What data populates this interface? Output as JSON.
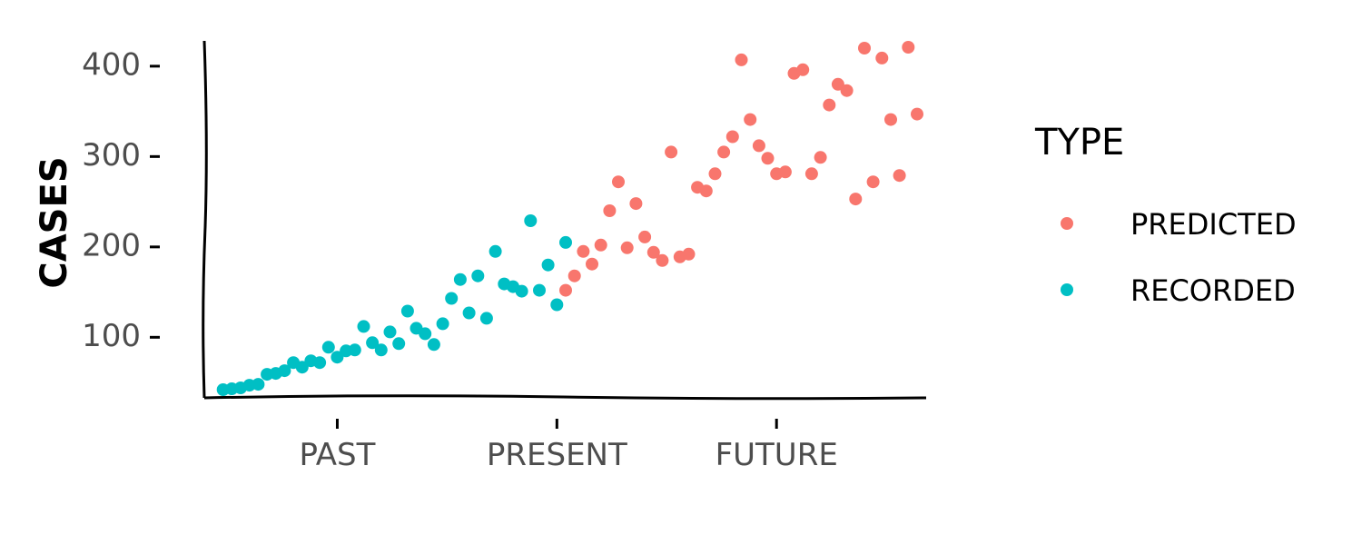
{
  "chart_data": {
    "type": "scatter",
    "ylabel": "CASES",
    "xlabel": "",
    "x_ticks": [
      {
        "label": "PAST",
        "x": 15
      },
      {
        "label": "PRESENT",
        "x": 40
      },
      {
        "label": "FUTURE",
        "x": 65
      }
    ],
    "y_ticks": [
      100,
      200,
      300,
      400
    ],
    "xlim": [
      1,
      81
    ],
    "ylim": [
      35,
      428
    ],
    "legend_title": "TYPE",
    "legend_position": "right",
    "series": [
      {
        "name": "RECORDED",
        "color": "#00BFC4",
        "points": [
          [
            2,
            42
          ],
          [
            3,
            43
          ],
          [
            4,
            44
          ],
          [
            5,
            47
          ],
          [
            6,
            48
          ],
          [
            7,
            59
          ],
          [
            8,
            60
          ],
          [
            9,
            63
          ],
          [
            10,
            72
          ],
          [
            11,
            67
          ],
          [
            12,
            74
          ],
          [
            13,
            72
          ],
          [
            14,
            89
          ],
          [
            15,
            78
          ],
          [
            16,
            85
          ],
          [
            17,
            86
          ],
          [
            18,
            112
          ],
          [
            19,
            94
          ],
          [
            20,
            86
          ],
          [
            21,
            106
          ],
          [
            22,
            93
          ],
          [
            23,
            129
          ],
          [
            24,
            110
          ],
          [
            25,
            104
          ],
          [
            26,
            92
          ],
          [
            27,
            115
          ],
          [
            28,
            143
          ],
          [
            29,
            164
          ],
          [
            30,
            127
          ],
          [
            31,
            168
          ],
          [
            32,
            121
          ],
          [
            33,
            195
          ],
          [
            34,
            159
          ],
          [
            35,
            156
          ],
          [
            36,
            151
          ],
          [
            37,
            229
          ],
          [
            38,
            152
          ],
          [
            39,
            180
          ],
          [
            40,
            136
          ],
          [
            41,
            205
          ]
        ]
      },
      {
        "name": "PREDICTED",
        "color": "#F8766D",
        "points": [
          [
            41,
            152
          ],
          [
            42,
            168
          ],
          [
            43,
            195
          ],
          [
            44,
            181
          ],
          [
            45,
            202
          ],
          [
            46,
            240
          ],
          [
            47,
            272
          ],
          [
            48,
            199
          ],
          [
            49,
            248
          ],
          [
            50,
            211
          ],
          [
            51,
            194
          ],
          [
            52,
            185
          ],
          [
            53,
            305
          ],
          [
            54,
            189
          ],
          [
            55,
            192
          ],
          [
            56,
            266
          ],
          [
            57,
            262
          ],
          [
            58,
            281
          ],
          [
            59,
            305
          ],
          [
            60,
            322
          ],
          [
            61,
            407
          ],
          [
            62,
            341
          ],
          [
            63,
            312
          ],
          [
            64,
            298
          ],
          [
            65,
            281
          ],
          [
            66,
            283
          ],
          [
            67,
            392
          ],
          [
            68,
            396
          ],
          [
            69,
            281
          ],
          [
            70,
            299
          ],
          [
            71,
            357
          ],
          [
            72,
            380
          ],
          [
            73,
            373
          ],
          [
            74,
            253
          ],
          [
            75,
            420
          ],
          [
            76,
            272
          ],
          [
            77,
            409
          ],
          [
            78,
            341
          ],
          [
            79,
            279
          ],
          [
            80,
            421
          ],
          [
            81,
            347
          ]
        ]
      }
    ]
  }
}
